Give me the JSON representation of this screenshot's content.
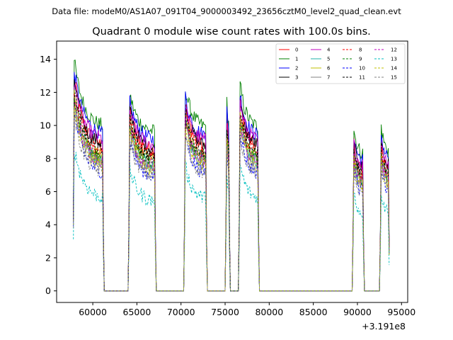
{
  "chart_data": {
    "type": "line",
    "suptitle": "Data file: modeM0/AS1A07_091T04_9000003492_23656cztM0_level2_quad_clean.evt",
    "title": "Quadrant 0 module wise count rates with 100.0s bins.",
    "xlabel": "",
    "ylabel": "",
    "x_offset_label": "+3.191e8",
    "xlim": [
      55900,
      95700
    ],
    "ylim": [
      -0.7,
      15.1
    ],
    "x_ticks": [
      60000,
      65000,
      70000,
      75000,
      80000,
      85000,
      90000,
      95000
    ],
    "y_ticks": [
      0,
      2,
      4,
      6,
      8,
      10,
      12,
      14
    ],
    "legend": {
      "placement": "top-right",
      "columns": 4
    },
    "segments": [
      {
        "start": 57800,
        "end": 61200
      },
      {
        "start": 64100,
        "end": 67100
      },
      {
        "start": 70400,
        "end": 72900
      },
      {
        "start": 75100,
        "end": 75500
      },
      {
        "start": 76600,
        "end": 78800
      },
      {
        "start": 89500,
        "end": 90700
      },
      {
        "start": 92600,
        "end": 93600
      }
    ],
    "series": [
      {
        "name": "0",
        "color": "#ff0000",
        "dash": "solid",
        "peak": 13.3,
        "base": 8.6
      },
      {
        "name": "1",
        "color": "#008000",
        "dash": "solid",
        "peak": 14.3,
        "base": 9.8
      },
      {
        "name": "2",
        "color": "#0000ff",
        "dash": "solid",
        "peak": 13.7,
        "base": 9.3
      },
      {
        "name": "3",
        "color": "#000000",
        "dash": "solid",
        "peak": 13.2,
        "base": 8.7
      },
      {
        "name": "4",
        "color": "#bf00bf",
        "dash": "solid",
        "peak": 13.0,
        "base": 9.0
      },
      {
        "name": "5",
        "color": "#20b2aa",
        "dash": "solid",
        "peak": 12.0,
        "base": 7.7
      },
      {
        "name": "6",
        "color": "#bfbf00",
        "dash": "solid",
        "peak": 12.3,
        "base": 8.0
      },
      {
        "name": "7",
        "color": "#808080",
        "dash": "solid",
        "peak": 11.8,
        "base": 7.6
      },
      {
        "name": "8",
        "color": "#ff0000",
        "dash": "dashed",
        "peak": 12.6,
        "base": 8.2
      },
      {
        "name": "9",
        "color": "#008000",
        "dash": "dashed",
        "peak": 12.1,
        "base": 7.9
      },
      {
        "name": "10",
        "color": "#0000ff",
        "dash": "dashed",
        "peak": 11.2,
        "base": 7.0
      },
      {
        "name": "11",
        "color": "#000000",
        "dash": "dashed",
        "peak": 12.4,
        "base": 8.3
      },
      {
        "name": "12",
        "color": "#bf00bf",
        "dash": "dashed",
        "peak": 11.9,
        "base": 7.6
      },
      {
        "name": "13",
        "color": "#00bfbf",
        "dash": "dashed",
        "peak": 8.9,
        "base": 5.5
      },
      {
        "name": "14",
        "color": "#bfbf00",
        "dash": "dashed",
        "peak": 11.6,
        "base": 7.4
      },
      {
        "name": "15",
        "color": "#808080",
        "dash": "dashed",
        "peak": 11.0,
        "base": 7.0
      }
    ]
  }
}
